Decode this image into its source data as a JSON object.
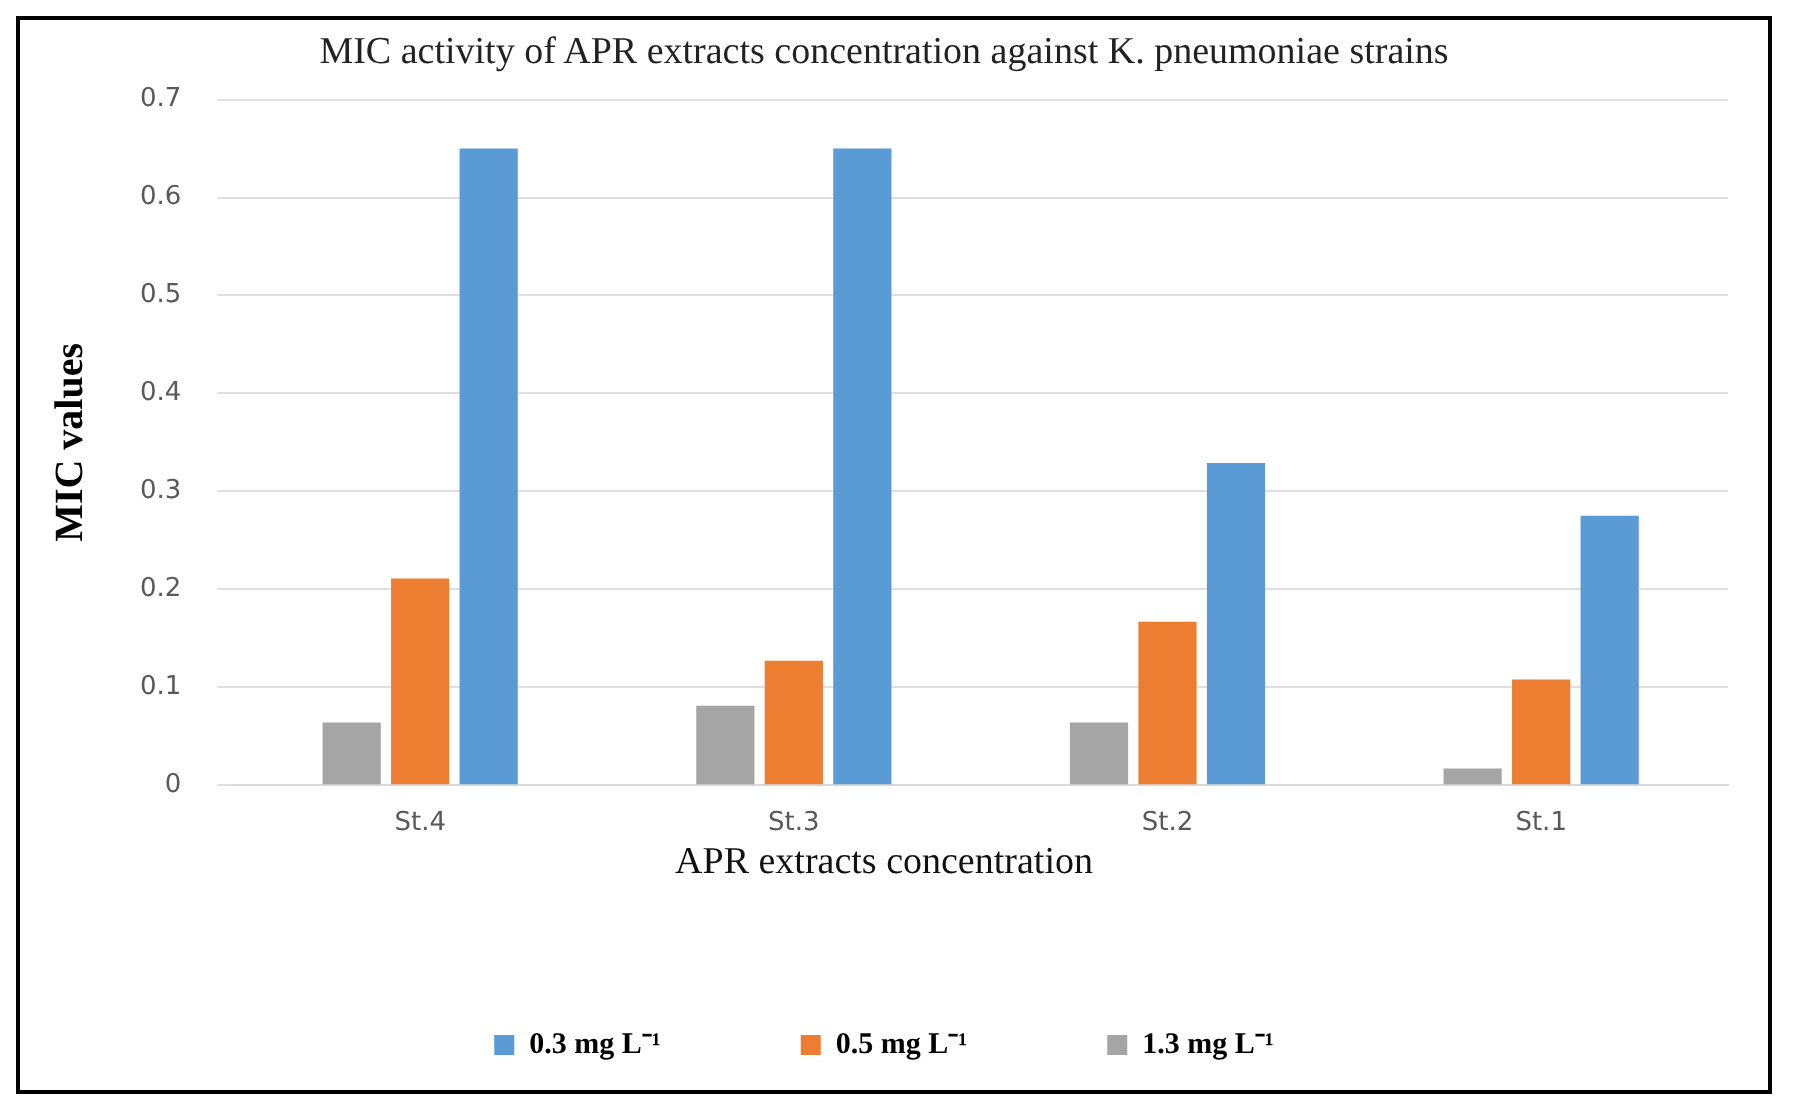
{
  "chart_data": {
    "type": "bar",
    "title": "MIC activity of APR extracts concentration against K. pneumoniae strains",
    "ylabel": "MIC values",
    "legend_title": "APR extracts concentration",
    "categories": [
      "St.4",
      "St.3",
      "St.2",
      "St.1"
    ],
    "series": [
      {
        "name": "1.3 mg L⁻¹",
        "color": "#a5a5a5",
        "values": [
          0.064,
          0.081,
          0.064,
          0.017
        ]
      },
      {
        "name": "0.5 mg L⁻¹",
        "color": "#ed7d31",
        "values": [
          0.211,
          0.127,
          0.167,
          0.108
        ]
      },
      {
        "name": "0.3 mg L⁻¹",
        "color": "#5b9bd5",
        "values": [
          0.65,
          0.65,
          0.329,
          0.275
        ]
      }
    ],
    "ylim": [
      0,
      0.7
    ],
    "yticks": [
      0,
      0.1,
      0.2,
      0.3,
      0.4,
      0.5,
      0.6,
      0.7
    ],
    "grid": "y",
    "legend": "bottom"
  }
}
